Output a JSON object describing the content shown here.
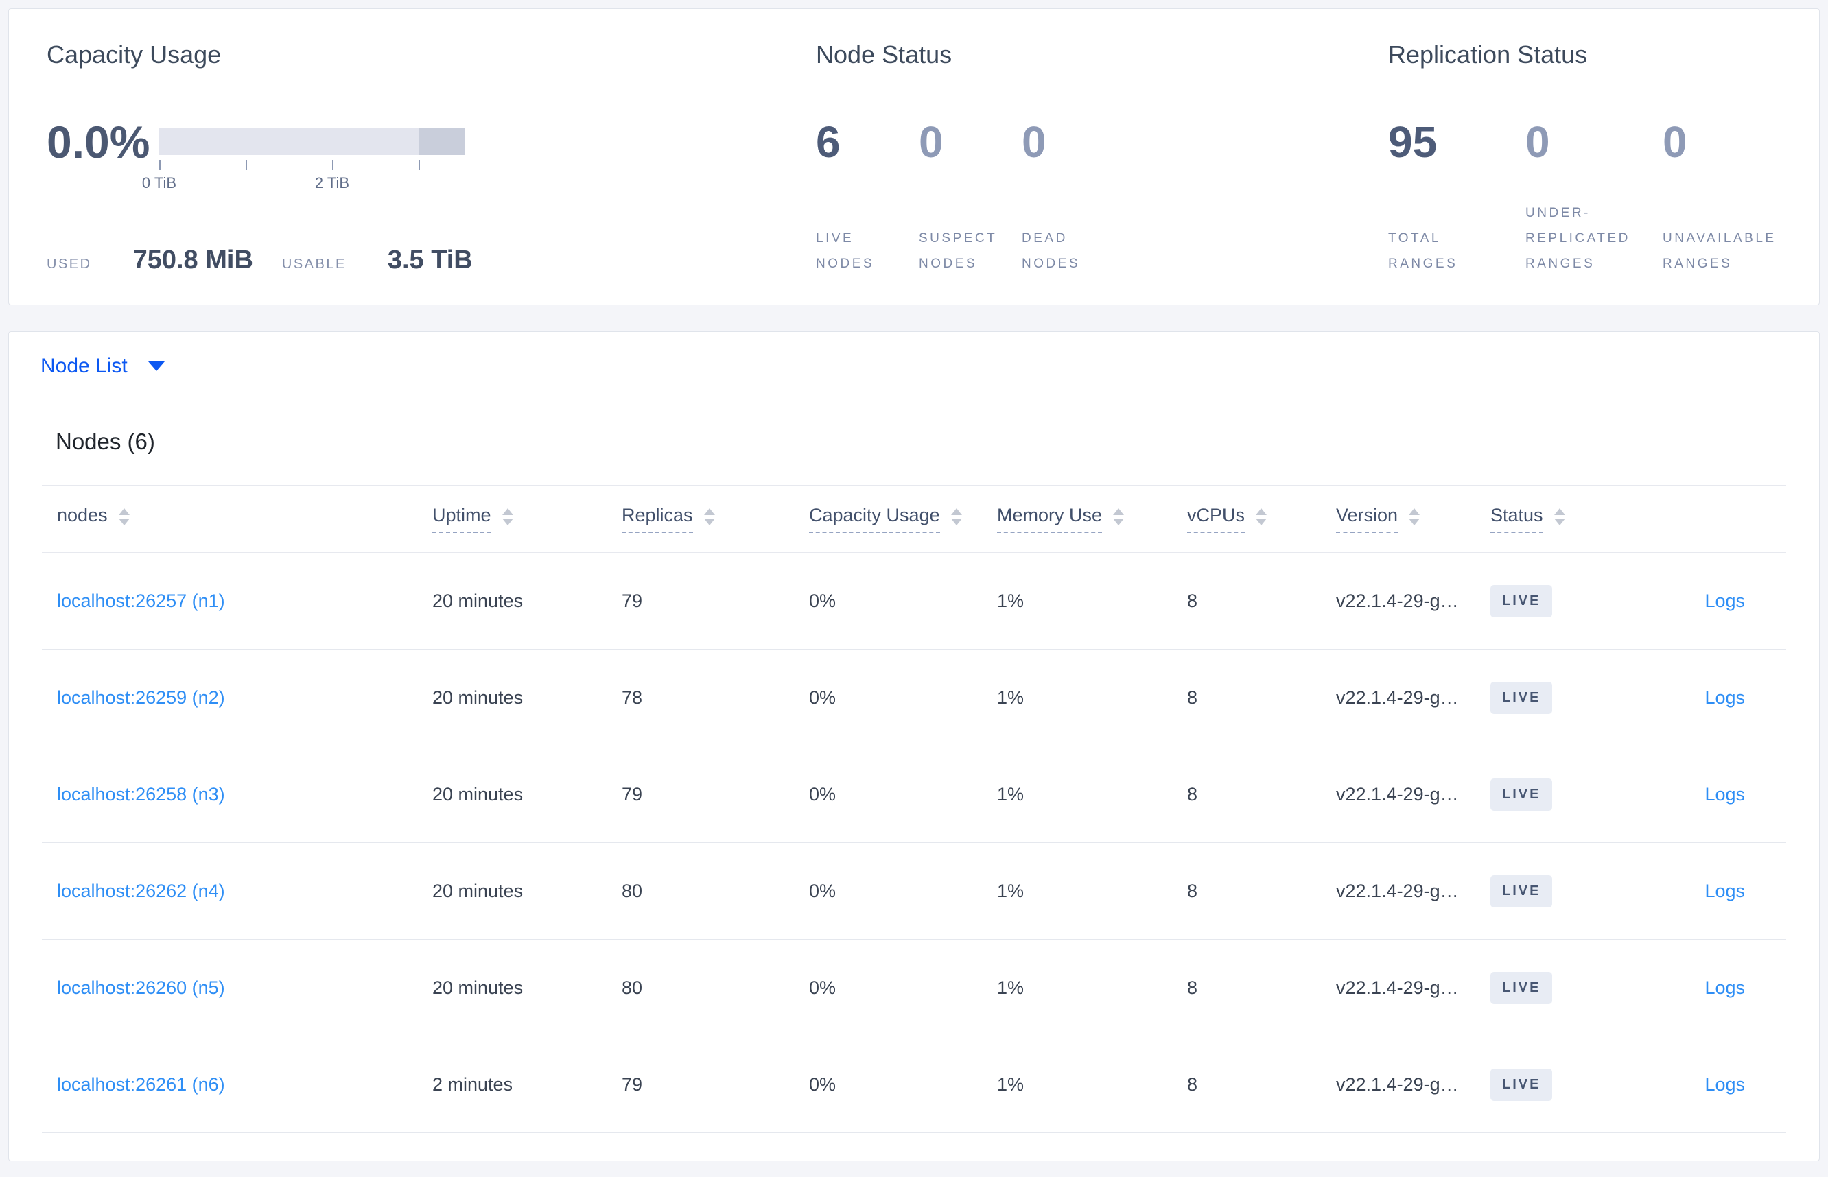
{
  "capacity_usage": {
    "title": "Capacity Usage",
    "percent": "0.0%",
    "ticks": [
      {
        "label": "0 TiB",
        "pos": 0
      },
      {
        "label": "",
        "pos": 1
      },
      {
        "label": "2 TiB",
        "pos": 2
      },
      {
        "label": "",
        "pos": 3
      }
    ],
    "used_label": "USED",
    "used_value": "750.8 MiB",
    "usable_label": "USABLE",
    "usable_value": "3.5 TiB"
  },
  "node_status": {
    "title": "Node Status",
    "stats": [
      {
        "value": "6",
        "label": "LIVE NODES",
        "emphasized": true
      },
      {
        "value": "0",
        "label": "SUSPECT NODES",
        "emphasized": false
      },
      {
        "value": "0",
        "label": "DEAD NODES",
        "emphasized": false
      }
    ]
  },
  "replication_status": {
    "title": "Replication Status",
    "stats": [
      {
        "value": "95",
        "label": "TOTAL RANGES",
        "emphasized": true
      },
      {
        "value": "0",
        "label": "UNDER-REPLICATED RANGES",
        "emphasized": false
      },
      {
        "value": "0",
        "label": "UNAVAILABLE RANGES",
        "emphasized": false
      }
    ]
  },
  "node_list": {
    "label": "Node List"
  },
  "nodes_table": {
    "title": "Nodes (6)",
    "columns": [
      {
        "label": "nodes",
        "tooltip": false
      },
      {
        "label": "Uptime",
        "tooltip": true
      },
      {
        "label": "Replicas",
        "tooltip": true
      },
      {
        "label": "Capacity Usage",
        "tooltip": true
      },
      {
        "label": "Memory Use",
        "tooltip": true
      },
      {
        "label": "vCPUs",
        "tooltip": true
      },
      {
        "label": "Version",
        "tooltip": true
      },
      {
        "label": "Status",
        "tooltip": true
      }
    ],
    "logs_label": "Logs",
    "rows": [
      {
        "node": "localhost:26257 (n1)",
        "uptime": "20 minutes",
        "replicas": "79",
        "capacity_usage": "0%",
        "memory_use": "1%",
        "vcpus": "8",
        "version": "v22.1.4-29-g…",
        "status": "LIVE"
      },
      {
        "node": "localhost:26259 (n2)",
        "uptime": "20 minutes",
        "replicas": "78",
        "capacity_usage": "0%",
        "memory_use": "1%",
        "vcpus": "8",
        "version": "v22.1.4-29-g…",
        "status": "LIVE"
      },
      {
        "node": "localhost:26258 (n3)",
        "uptime": "20 minutes",
        "replicas": "79",
        "capacity_usage": "0%",
        "memory_use": "1%",
        "vcpus": "8",
        "version": "v22.1.4-29-g…",
        "status": "LIVE"
      },
      {
        "node": "localhost:26262 (n4)",
        "uptime": "20 minutes",
        "replicas": "80",
        "capacity_usage": "0%",
        "memory_use": "1%",
        "vcpus": "8",
        "version": "v22.1.4-29-g…",
        "status": "LIVE"
      },
      {
        "node": "localhost:26260 (n5)",
        "uptime": "20 minutes",
        "replicas": "80",
        "capacity_usage": "0%",
        "memory_use": "1%",
        "vcpus": "8",
        "version": "v22.1.4-29-g…",
        "status": "LIVE"
      },
      {
        "node": "localhost:26261 (n6)",
        "uptime": "2 minutes",
        "replicas": "79",
        "capacity_usage": "0%",
        "memory_use": "1%",
        "vcpus": "8",
        "version": "v22.1.4-29-g…",
        "status": "LIVE"
      }
    ]
  },
  "colors": {
    "accent_blue": "#0c58f2",
    "link_blue": "#2e8ef5",
    "stat_dark": "#4d5b78",
    "stat_dim": "#8e9ab6",
    "badge_bg": "#e8ecf4",
    "bar_light": "#e3e5ee",
    "bar_dark": "#c9cedb"
  }
}
